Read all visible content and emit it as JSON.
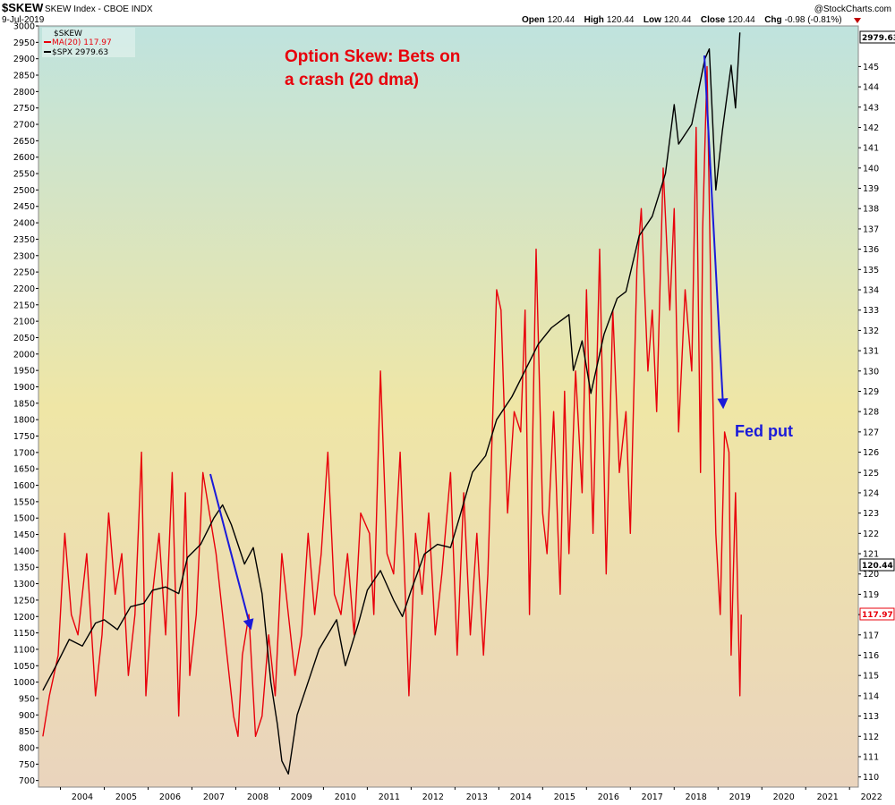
{
  "header": {
    "symbol": "$SKEW",
    "name": "SKEW Index - CBOE INDX",
    "date": "9-Jul-2019",
    "brand": "@StockCharts.com",
    "open_label": "Open",
    "open": "120.44",
    "high_label": "High",
    "high": "120.44",
    "low_label": "Low",
    "low": "120.44",
    "close_label": "Close",
    "close": "120.44",
    "chg_label": "Chg",
    "chg": "-0.98 (-0.81%)"
  },
  "legend": [
    "$SKEW",
    "MA(20) 117.97",
    "$SPX 2979.63"
  ],
  "annotations": {
    "title_line1": "Option Skew: Bets on",
    "title_line2": "a crash (20 dma)",
    "fed_put": "Fed put"
  },
  "tags": {
    "spx_last": "2979.63",
    "skew_last": "120.44",
    "ma_last": "117.97"
  },
  "colors": {
    "ma_line": "#e8000b",
    "spx_line": "#000000",
    "arrow": "#1a1ad9",
    "bg_top": "#bfe3de",
    "bg_mid": "#efe6a6",
    "bg_bottom": "#ead4bd"
  },
  "chart_data": {
    "type": "line",
    "x_ticks": [
      "2004",
      "2005",
      "2006",
      "2007",
      "2008",
      "2009",
      "2010",
      "2011",
      "2012",
      "2013",
      "2014",
      "2015",
      "2016",
      "2017",
      "2018",
      "2019",
      "2020",
      "2021",
      "2022"
    ],
    "left_axis": {
      "range": [
        680,
        3000
      ],
      "ticks": [
        700,
        750,
        800,
        850,
        900,
        950,
        1000,
        1050,
        1100,
        1150,
        1200,
        1250,
        1300,
        1350,
        1400,
        1450,
        1500,
        1550,
        1600,
        1650,
        1700,
        1750,
        1800,
        1850,
        1900,
        1950,
        2000,
        2050,
        2100,
        2150,
        2200,
        2250,
        2300,
        2350,
        2400,
        2450,
        2500,
        2550,
        2600,
        2650,
        2700,
        2750,
        2800,
        2850,
        2900,
        2950,
        3000
      ]
    },
    "right_axis": {
      "range": [
        109.5,
        147
      ],
      "ticks": [
        110,
        111,
        112,
        113,
        114,
        115,
        116,
        117,
        118,
        119,
        120,
        121,
        122,
        123,
        124,
        125,
        126,
        127,
        128,
        129,
        130,
        131,
        132,
        133,
        134,
        135,
        136,
        137,
        138,
        139,
        140,
        141,
        142,
        143,
        144,
        145
      ]
    },
    "series": [
      {
        "name": "$SPX 2979.63",
        "axis": "left",
        "x": [
          2003.6,
          2003.9,
          2004.2,
          2004.5,
          2004.8,
          2005.0,
          2005.3,
          2005.6,
          2005.9,
          2006.1,
          2006.4,
          2006.7,
          2006.9,
          2007.2,
          2007.5,
          2007.7,
          2007.9,
          2008.2,
          2008.4,
          2008.6,
          2008.8,
          2008.95,
          2009.05,
          2009.2,
          2009.4,
          2009.7,
          2009.9,
          2010.3,
          2010.5,
          2010.8,
          2011.0,
          2011.3,
          2011.6,
          2011.8,
          2012.0,
          2012.3,
          2012.6,
          2012.9,
          2013.1,
          2013.4,
          2013.7,
          2013.95,
          2014.3,
          2014.6,
          2014.9,
          2015.2,
          2015.4,
          2015.6,
          2015.7,
          2015.9,
          2016.1,
          2016.4,
          2016.7,
          2016.9,
          2017.2,
          2017.5,
          2017.8,
          2018.0,
          2018.1,
          2018.4,
          2018.7,
          2018.8,
          2018.95,
          2019.1,
          2019.3,
          2019.4,
          2019.5
        ],
        "y": [
          975,
          1050,
          1130,
          1110,
          1180,
          1190,
          1160,
          1230,
          1240,
          1280,
          1290,
          1270,
          1380,
          1420,
          1500,
          1540,
          1480,
          1360,
          1410,
          1270,
          1000,
          870,
          760,
          720,
          900,
          1020,
          1100,
          1190,
          1050,
          1180,
          1280,
          1340,
          1250,
          1200,
          1280,
          1390,
          1420,
          1410,
          1500,
          1640,
          1690,
          1800,
          1870,
          1950,
          2030,
          2080,
          2100,
          2120,
          1950,
          2040,
          1880,
          2060,
          2170,
          2190,
          2360,
          2420,
          2550,
          2760,
          2640,
          2700,
          2900,
          2930,
          2500,
          2680,
          2880,
          2750,
          2980
        ]
      },
      {
        "name": "MA(20) 117.97",
        "axis": "right",
        "x": [
          2003.6,
          2003.75,
          2003.95,
          2004.1,
          2004.25,
          2004.4,
          2004.6,
          2004.8,
          2004.95,
          2005.1,
          2005.25,
          2005.4,
          2005.55,
          2005.7,
          2005.85,
          2005.95,
          2006.1,
          2006.25,
          2006.4,
          2006.55,
          2006.7,
          2006.85,
          2006.95,
          2007.1,
          2007.25,
          2007.4,
          2007.55,
          2007.7,
          2007.8,
          2007.95,
          2008.05,
          2008.15,
          2008.3,
          2008.45,
          2008.6,
          2008.75,
          2008.9,
          2009.05,
          2009.2,
          2009.35,
          2009.5,
          2009.65,
          2009.8,
          2009.95,
          2010.1,
          2010.25,
          2010.4,
          2010.55,
          2010.7,
          2010.85,
          2011.05,
          2011.15,
          2011.3,
          2011.45,
          2011.6,
          2011.75,
          2011.95,
          2012.1,
          2012.25,
          2012.4,
          2012.55,
          2012.7,
          2012.9,
          2013.05,
          2013.2,
          2013.35,
          2013.5,
          2013.65,
          2013.75,
          2013.95,
          2014.05,
          2014.2,
          2014.35,
          2014.5,
          2014.6,
          2014.7,
          2014.85,
          2015.0,
          2015.1,
          2015.25,
          2015.4,
          2015.5,
          2015.6,
          2015.75,
          2015.9,
          2016.0,
          2016.15,
          2016.3,
          2016.45,
          2016.6,
          2016.75,
          2016.9,
          2017.0,
          2017.15,
          2017.25,
          2017.4,
          2017.5,
          2017.6,
          2017.75,
          2017.9,
          2018.0,
          2018.1,
          2018.25,
          2018.4,
          2018.5,
          2018.6,
          2018.65,
          2018.75,
          2018.85,
          2018.95,
          2019.05,
          2019.15,
          2019.25,
          2019.3,
          2019.4,
          2019.5,
          2019.53
        ],
        "y": [
          112,
          114,
          116,
          122,
          118,
          117,
          121,
          114,
          117,
          123,
          119,
          121,
          115,
          118,
          126,
          114,
          119,
          122,
          117,
          125,
          113,
          124,
          115,
          118,
          125,
          123,
          121,
          118,
          116,
          113,
          112,
          116,
          118,
          112,
          113,
          117,
          114,
          121,
          118,
          115,
          117,
          122,
          118,
          121,
          126,
          119,
          118,
          121,
          117,
          123,
          122,
          118,
          130,
          121,
          120,
          126,
          114,
          122,
          119,
          123,
          117,
          120,
          125,
          116,
          124,
          117,
          122,
          116,
          120,
          134,
          133,
          123,
          128,
          127,
          133,
          118,
          136,
          123,
          121,
          128,
          119,
          129,
          121,
          130,
          124,
          134,
          122,
          136,
          120,
          133,
          125,
          128,
          122,
          135,
          138,
          130,
          133,
          128,
          140,
          133,
          138,
          127,
          134,
          130,
          142,
          125,
          137,
          145,
          132,
          122,
          118,
          127,
          126,
          116,
          124,
          114,
          118
        ]
      }
    ]
  }
}
